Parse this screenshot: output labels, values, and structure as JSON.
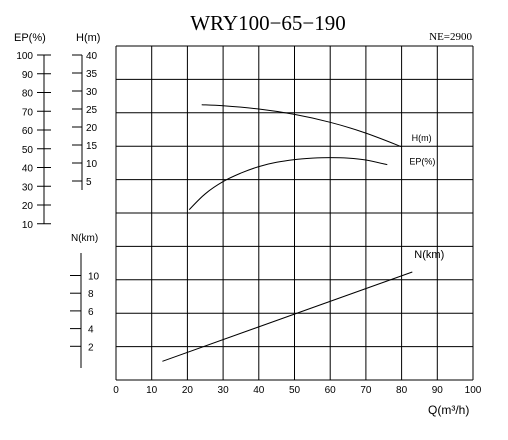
{
  "chart_data": {
    "type": "line",
    "title": "WRY100−65−190",
    "speed_label": "NE=2900",
    "xlabel": "Q(m³/h)",
    "x_ticks": [
      0,
      10,
      20,
      30,
      40,
      50,
      60,
      70,
      80,
      90,
      100
    ],
    "xlim": [
      0,
      100
    ],
    "grid": true,
    "axes": {
      "ep": {
        "label": "EP(%)",
        "ticks": [
          100,
          90,
          80,
          70,
          60,
          50,
          40,
          30,
          20,
          10
        ]
      },
      "h": {
        "label": "H(m)",
        "ticks": [
          40,
          35,
          30,
          25,
          20,
          15,
          10,
          5
        ]
      },
      "n": {
        "label": "N(km)",
        "ticks": [
          10,
          8,
          6,
          4,
          2
        ]
      }
    },
    "series": [
      {
        "name": "H(m)",
        "axis": "h",
        "x": [
          24,
          30,
          40,
          50,
          60,
          70,
          80
        ],
        "y": [
          26.2,
          25.9,
          25.0,
          23.5,
          21.3,
          18.3,
          14.5
        ]
      },
      {
        "name": "EP(%)",
        "axis": "ep",
        "x": [
          20.5,
          25,
          30,
          35,
          40,
          45,
          50,
          55,
          60,
          65,
          70,
          76
        ],
        "y": [
          17.5,
          26,
          32.5,
          37,
          40.5,
          42.8,
          44.2,
          45.0,
          45.3,
          45.0,
          44.0,
          41.5
        ]
      },
      {
        "name": "N(km)",
        "axis": "n",
        "x": [
          13,
          83
        ],
        "y": [
          0.3,
          10.4
        ]
      }
    ]
  }
}
